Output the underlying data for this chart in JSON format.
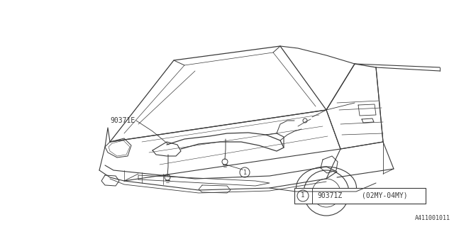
{
  "background_color": "#ffffff",
  "line_color": "#3a3a3a",
  "label_90371E": "90371E",
  "label_90371Z": "90371Z",
  "label_date": "(02MY-04MY)",
  "callout_number": "1",
  "diagram_code": "A411001011",
  "fig_width": 6.4,
  "fig_height": 3.2,
  "dpi": 100
}
